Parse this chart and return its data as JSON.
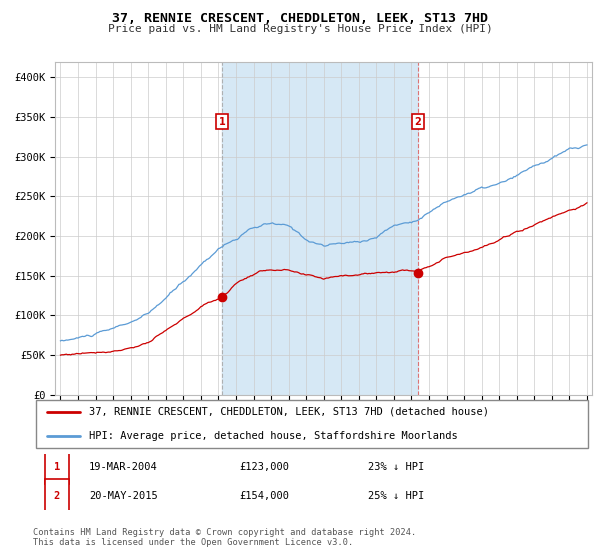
{
  "title": "37, RENNIE CRESCENT, CHEDDLETON, LEEK, ST13 7HD",
  "subtitle": "Price paid vs. HM Land Registry's House Price Index (HPI)",
  "ylabel_ticks": [
    "£0",
    "£50K",
    "£100K",
    "£150K",
    "£200K",
    "£250K",
    "£300K",
    "£350K",
    "£400K"
  ],
  "ytick_values": [
    0,
    50000,
    100000,
    150000,
    200000,
    250000,
    300000,
    350000,
    400000
  ],
  "ylim": [
    0,
    420000
  ],
  "hpi_color": "#5b9bd5",
  "hpi_fill_color": "#d6e8f5",
  "price_color": "#cc0000",
  "bg_color": "#ffffff",
  "grid_color": "#cccccc",
  "marker1": {
    "year": 2004.22,
    "value": 123000,
    "label": "1",
    "date": "19-MAR-2004",
    "price": "£123,000",
    "note": "23% ↓ HPI"
  },
  "marker2": {
    "year": 2015.37,
    "value": 154000,
    "label": "2",
    "date": "20-MAY-2015",
    "price": "£154,000",
    "note": "25% ↓ HPI"
  },
  "legend_line1": "37, RENNIE CRESCENT, CHEDDLETON, LEEK, ST13 7HD (detached house)",
  "legend_line2": "HPI: Average price, detached house, Staffordshire Moorlands",
  "footer": "Contains HM Land Registry data © Crown copyright and database right 2024.\nThis data is licensed under the Open Government Licence v3.0.",
  "xstart": 1995,
  "xend": 2025,
  "hpi_seed": 10,
  "price_seed": 77
}
